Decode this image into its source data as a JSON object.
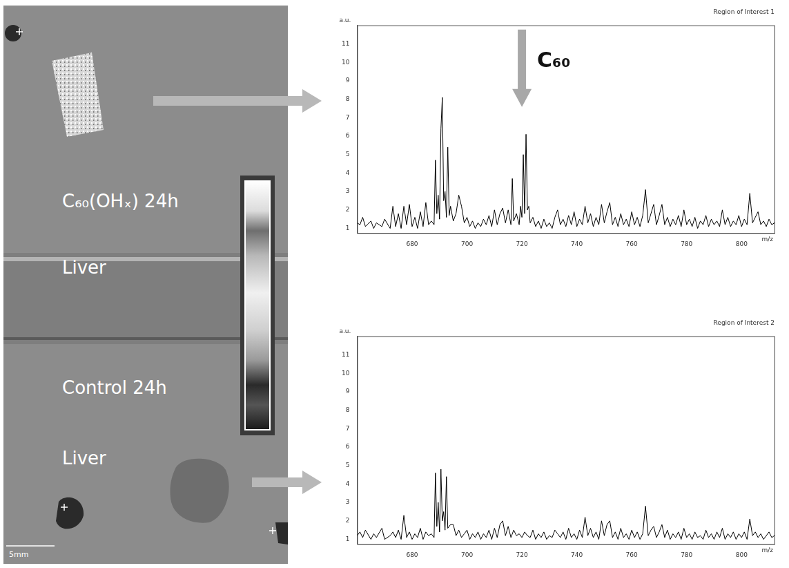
{
  "image": {
    "labels": [
      "C₆₀(OHₓ) 24h",
      "Liver",
      "Control 24h",
      "Liver"
    ],
    "scale_bar": "5mm"
  },
  "chart_data": [
    {
      "type": "line",
      "title": "Region of Interest 1",
      "y_label": "a.u.",
      "x_label": "m/z",
      "color": "#000000",
      "grid": false,
      "xlim": [
        660,
        812
      ],
      "xticks": [
        680,
        700,
        720,
        740,
        760,
        780,
        800
      ],
      "ylim": [
        0.75,
        12
      ],
      "yticks": [
        1,
        2,
        3,
        4,
        5,
        6,
        7,
        8,
        9,
        10,
        11
      ],
      "annotations": [
        {
          "text": "C₆₀",
          "x": 720
        }
      ],
      "x": [
        660,
        661,
        662,
        663,
        665,
        666,
        667,
        669,
        670,
        672,
        673,
        674,
        675,
        676,
        677,
        678,
        679,
        680,
        681,
        682,
        683,
        684,
        685,
        686,
        687,
        688,
        688.5,
        689,
        689.5,
        690,
        690.5,
        691,
        691.5,
        692,
        692.5,
        693,
        693.5,
        694,
        695,
        696,
        697,
        698,
        699,
        700,
        701,
        702,
        703,
        704,
        705,
        706,
        707,
        708,
        709,
        710,
        711,
        712,
        713,
        714,
        715,
        716,
        716.5,
        717,
        718,
        719,
        719.5,
        720,
        720.5,
        721,
        721.5,
        722,
        722.5,
        723,
        724,
        725,
        726,
        727,
        728,
        729,
        730,
        731,
        732,
        733,
        734,
        735,
        736,
        737,
        738,
        739,
        740,
        741,
        742,
        743,
        744,
        745,
        746,
        747,
        748,
        749,
        750,
        751,
        752,
        753,
        754,
        755,
        756,
        757,
        758,
        759,
        760,
        761,
        762,
        763,
        764,
        765,
        766,
        767,
        768,
        769,
        770,
        771,
        772,
        773,
        774,
        775,
        776,
        777,
        778,
        779,
        780,
        781,
        782,
        783,
        784,
        785,
        786,
        787,
        788,
        789,
        790,
        791,
        792,
        793,
        794,
        795,
        796,
        797,
        798,
        799,
        800,
        801,
        802,
        803,
        804,
        805,
        806,
        807,
        808,
        809,
        810,
        811,
        812
      ],
      "values": [
        1.3,
        1.2,
        1.6,
        1.1,
        1.4,
        1.0,
        1.3,
        1.1,
        1.5,
        1.0,
        2.2,
        1.1,
        1.8,
        1.0,
        2.2,
        1.2,
        2.3,
        1.1,
        1.6,
        1.0,
        1.9,
        1.1,
        2.4,
        1.2,
        1.4,
        1.2,
        4.7,
        1.8,
        2.8,
        1.5,
        6.4,
        8.1,
        2.5,
        3.0,
        1.6,
        5.4,
        1.7,
        2.2,
        1.4,
        1.8,
        2.8,
        2.2,
        1.3,
        1.6,
        1.1,
        1.4,
        1.0,
        1.3,
        1.1,
        1.5,
        1.2,
        1.7,
        1.1,
        2.0,
        1.2,
        1.8,
        2.1,
        1.3,
        2.0,
        1.2,
        3.7,
        1.4,
        1.8,
        1.2,
        2.2,
        1.6,
        5.0,
        1.8,
        6.1,
        2.0,
        2.2,
        1.3,
        1.6,
        1.1,
        1.4,
        1.0,
        1.5,
        1.1,
        1.3,
        1.0,
        1.6,
        2.0,
        1.2,
        1.5,
        1.1,
        1.7,
        1.2,
        1.9,
        1.1,
        1.5,
        1.2,
        2.2,
        1.3,
        1.8,
        1.1,
        1.6,
        1.2,
        2.3,
        1.3,
        1.9,
        2.4,
        1.2,
        1.6,
        1.1,
        1.8,
        1.2,
        1.5,
        1.1,
        1.9,
        1.2,
        1.6,
        1.1,
        1.7,
        3.1,
        1.3,
        1.8,
        2.3,
        1.2,
        1.7,
        2.3,
        1.2,
        1.6,
        1.1,
        1.5,
        1.2,
        1.7,
        1.1,
        2.0,
        1.2,
        1.5,
        1.1,
        1.6,
        1.0,
        1.4,
        1.2,
        1.7,
        1.1,
        1.5,
        1.2,
        1.4,
        1.1,
        2.0,
        1.2,
        1.6,
        1.1,
        1.4,
        1.2,
        1.7,
        1.1,
        1.5,
        1.2,
        2.9,
        1.3,
        1.6,
        1.9,
        1.2,
        1.4,
        1.1,
        1.5,
        1.2,
        1.3
      ]
    },
    {
      "type": "line",
      "title": "Region of Interest 2",
      "y_label": "a.u.",
      "x_label": "m/z",
      "color": "#000000",
      "grid": false,
      "xlim": [
        660,
        812
      ],
      "xticks": [
        680,
        700,
        720,
        740,
        760,
        780,
        800
      ],
      "ylim": [
        0.75,
        12
      ],
      "yticks": [
        1,
        2,
        3,
        4,
        5,
        6,
        7,
        8,
        9,
        10,
        11
      ],
      "x": [
        660,
        661,
        662,
        663,
        665,
        666,
        667,
        669,
        670,
        672,
        673,
        674,
        675,
        676,
        677,
        678,
        679,
        680,
        681,
        682,
        683,
        684,
        685,
        686,
        687,
        688,
        688.5,
        689,
        689.5,
        690,
        690.5,
        691,
        691.5,
        692,
        692.5,
        693,
        694,
        695,
        696,
        697,
        698,
        699,
        700,
        701,
        702,
        703,
        704,
        705,
        706,
        707,
        708,
        709,
        710,
        711,
        712,
        713,
        714,
        715,
        716,
        717,
        718,
        719,
        720,
        721,
        722,
        723,
        724,
        725,
        726,
        727,
        728,
        729,
        730,
        731,
        732,
        733,
        734,
        735,
        736,
        737,
        738,
        739,
        740,
        741,
        742,
        743,
        744,
        745,
        746,
        747,
        748,
        749,
        750,
        751,
        752,
        753,
        754,
        755,
        756,
        757,
        758,
        759,
        760,
        761,
        762,
        763,
        764,
        765,
        766,
        767,
        768,
        769,
        770,
        771,
        772,
        773,
        774,
        775,
        776,
        777,
        778,
        779,
        780,
        781,
        782,
        783,
        784,
        785,
        786,
        787,
        788,
        789,
        790,
        791,
        792,
        793,
        794,
        795,
        796,
        797,
        798,
        799,
        800,
        801,
        802,
        803,
        804,
        805,
        806,
        807,
        808,
        809,
        810,
        811,
        812
      ],
      "values": [
        1.2,
        1.4,
        1.1,
        1.5,
        1.0,
        1.3,
        1.1,
        1.6,
        1.0,
        1.2,
        1.4,
        1.1,
        1.5,
        1.0,
        2.3,
        1.1,
        1.4,
        1.0,
        1.3,
        1.1,
        1.6,
        1.0,
        1.4,
        1.2,
        1.3,
        1.1,
        4.6,
        1.7,
        3.0,
        1.4,
        4.8,
        2.0,
        2.5,
        1.5,
        4.4,
        1.6,
        1.8,
        1.8,
        1.2,
        1.5,
        1.1,
        1.3,
        1.5,
        1.0,
        1.3,
        1.1,
        1.4,
        1.0,
        1.3,
        1.1,
        1.5,
        1.0,
        1.6,
        1.1,
        1.8,
        2.0,
        1.2,
        1.7,
        1.1,
        1.5,
        1.2,
        1.3,
        1.1,
        1.4,
        1.2,
        1.1,
        1.5,
        1.0,
        1.3,
        1.1,
        1.4,
        1.0,
        1.2,
        1.1,
        1.5,
        1.3,
        1.1,
        1.4,
        1.0,
        1.6,
        1.1,
        1.3,
        1.0,
        1.5,
        1.1,
        2.2,
        1.2,
        1.6,
        1.1,
        1.4,
        1.0,
        2.0,
        1.2,
        1.8,
        2.0,
        1.1,
        1.4,
        1.0,
        1.6,
        1.1,
        1.3,
        1.0,
        1.5,
        1.1,
        1.4,
        1.0,
        1.3,
        2.8,
        1.2,
        1.5,
        1.7,
        1.1,
        1.4,
        1.8,
        1.1,
        1.5,
        1.0,
        1.3,
        1.1,
        1.4,
        1.0,
        1.6,
        1.1,
        1.3,
        1.0,
        1.4,
        1.1,
        1.2,
        1.0,
        1.5,
        1.1,
        1.3,
        1.0,
        1.4,
        1.1,
        1.6,
        1.0,
        1.3,
        1.1,
        1.4,
        1.0,
        1.3,
        1.1,
        1.4,
        1.0,
        2.1,
        1.2,
        1.4,
        1.1,
        1.3,
        1.0,
        1.2,
        1.4,
        1.1,
        1.2
      ]
    }
  ]
}
